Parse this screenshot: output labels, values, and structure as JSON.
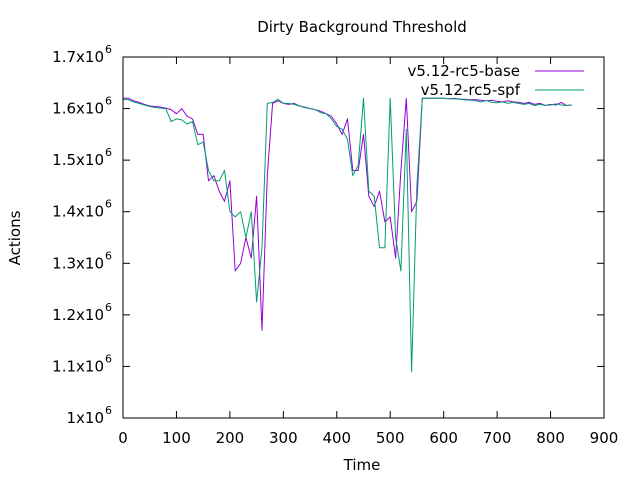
{
  "chart_data": {
    "type": "line",
    "title": "Dirty Background Threshold",
    "xlabel": "Time",
    "ylabel": "Actions",
    "xlim": [
      0,
      900
    ],
    "ylim": [
      1000000,
      1700000
    ],
    "x_ticks": [
      "0",
      "100",
      "200",
      "300",
      "400",
      "500",
      "600",
      "700",
      "800",
      "900"
    ],
    "x_tick_values": [
      0,
      100,
      200,
      300,
      400,
      500,
      600,
      700,
      800,
      900
    ],
    "y_ticks": [
      {
        "value": 1000000,
        "mantissa": "1x10",
        "exp": "6"
      },
      {
        "value": 1100000,
        "mantissa": "1.1x10",
        "exp": "6"
      },
      {
        "value": 1200000,
        "mantissa": "1.2x10",
        "exp": "6"
      },
      {
        "value": 1300000,
        "mantissa": "1.3x10",
        "exp": "6"
      },
      {
        "value": 1400000,
        "mantissa": "1.4x10",
        "exp": "6"
      },
      {
        "value": 1500000,
        "mantissa": "1.5x10",
        "exp": "6"
      },
      {
        "value": 1600000,
        "mantissa": "1.6x10",
        "exp": "6"
      },
      {
        "value": 1700000,
        "mantissa": "1.7x10",
        "exp": "6"
      }
    ],
    "legend_position": "top-right",
    "grid": false,
    "series": [
      {
        "name": "v5.12-rc5-base",
        "color": "#9400d3",
        "x": [
          0,
          10,
          20,
          30,
          40,
          50,
          60,
          70,
          80,
          90,
          100,
          110,
          120,
          130,
          140,
          150,
          160,
          170,
          180,
          190,
          200,
          210,
          220,
          230,
          240,
          250,
          260,
          270,
          280,
          290,
          300,
          310,
          320,
          330,
          340,
          350,
          360,
          370,
          380,
          390,
          400,
          410,
          420,
          430,
          440,
          450,
          460,
          470,
          480,
          490,
          500,
          510,
          520,
          530,
          540,
          550,
          560,
          570,
          580,
          590,
          600,
          610,
          620,
          630,
          640,
          650,
          660,
          670,
          680,
          690,
          700,
          710,
          720,
          730,
          740,
          750,
          760,
          770,
          780,
          790,
          800,
          810,
          820,
          830,
          840
        ],
        "y": [
          1620000,
          1620000,
          1615000,
          1612000,
          1608000,
          1605000,
          1604000,
          1603000,
          1601000,
          1598000,
          1590000,
          1600000,
          1585000,
          1580000,
          1550000,
          1550000,
          1460000,
          1470000,
          1440000,
          1420000,
          1460000,
          1285000,
          1300000,
          1350000,
          1310000,
          1430000,
          1170000,
          1470000,
          1610000,
          1615000,
          1610000,
          1608000,
          1610000,
          1605000,
          1602000,
          1600000,
          1598000,
          1595000,
          1590000,
          1585000,
          1570000,
          1550000,
          1580000,
          1480000,
          1480000,
          1550000,
          1430000,
          1410000,
          1440000,
          1380000,
          1390000,
          1310000,
          1480000,
          1620000,
          1400000,
          1420000,
          1620000,
          1620000,
          1620000,
          1620000,
          1620000,
          1619000,
          1620000,
          1618000,
          1618000,
          1617000,
          1617000,
          1616000,
          1615000,
          1616000,
          1614000,
          1613000,
          1615000,
          1613000,
          1612000,
          1610000,
          1612000,
          1608000,
          1610000,
          1606000,
          1608000,
          1607000,
          1612000,
          1606000,
          1607000
        ]
      },
      {
        "name": "v5.12-rc5-spf",
        "color": "#009e73",
        "x": [
          0,
          10,
          20,
          30,
          40,
          50,
          60,
          70,
          80,
          90,
          100,
          110,
          120,
          130,
          140,
          150,
          160,
          170,
          180,
          190,
          200,
          210,
          220,
          230,
          240,
          250,
          260,
          270,
          280,
          290,
          300,
          310,
          320,
          330,
          340,
          350,
          360,
          370,
          380,
          390,
          400,
          410,
          420,
          430,
          440,
          450,
          460,
          470,
          480,
          490,
          500,
          510,
          520,
          530,
          540,
          550,
          560,
          570,
          580,
          590,
          600,
          610,
          620,
          630,
          640,
          650,
          660,
          670,
          680,
          690,
          700,
          710,
          720,
          730,
          740,
          750,
          760,
          770,
          780,
          790,
          800,
          810,
          820,
          830,
          840
        ],
        "y": [
          1618000,
          1617000,
          1613000,
          1610000,
          1607000,
          1604000,
          1602000,
          1601000,
          1600000,
          1575000,
          1580000,
          1578000,
          1570000,
          1575000,
          1530000,
          1535000,
          1480000,
          1460000,
          1460000,
          1480000,
          1400000,
          1390000,
          1400000,
          1350000,
          1400000,
          1225000,
          1330000,
          1610000,
          1612000,
          1618000,
          1610000,
          1610000,
          1608000,
          1605000,
          1603000,
          1600000,
          1598000,
          1592000,
          1590000,
          1580000,
          1565000,
          1560000,
          1540000,
          1470000,
          1490000,
          1620000,
          1440000,
          1430000,
          1330000,
          1330000,
          1620000,
          1350000,
          1285000,
          1560000,
          1090000,
          1450000,
          1620000,
          1620000,
          1620000,
          1620000,
          1620000,
          1619000,
          1619000,
          1618000,
          1617000,
          1616000,
          1615000,
          1613000,
          1616000,
          1612000,
          1611000,
          1613000,
          1610000,
          1612000,
          1610000,
          1608000,
          1610000,
          1606000,
          1608000,
          1606000,
          1607000,
          1609000,
          1607000,
          1606000,
          1607000
        ]
      }
    ]
  }
}
